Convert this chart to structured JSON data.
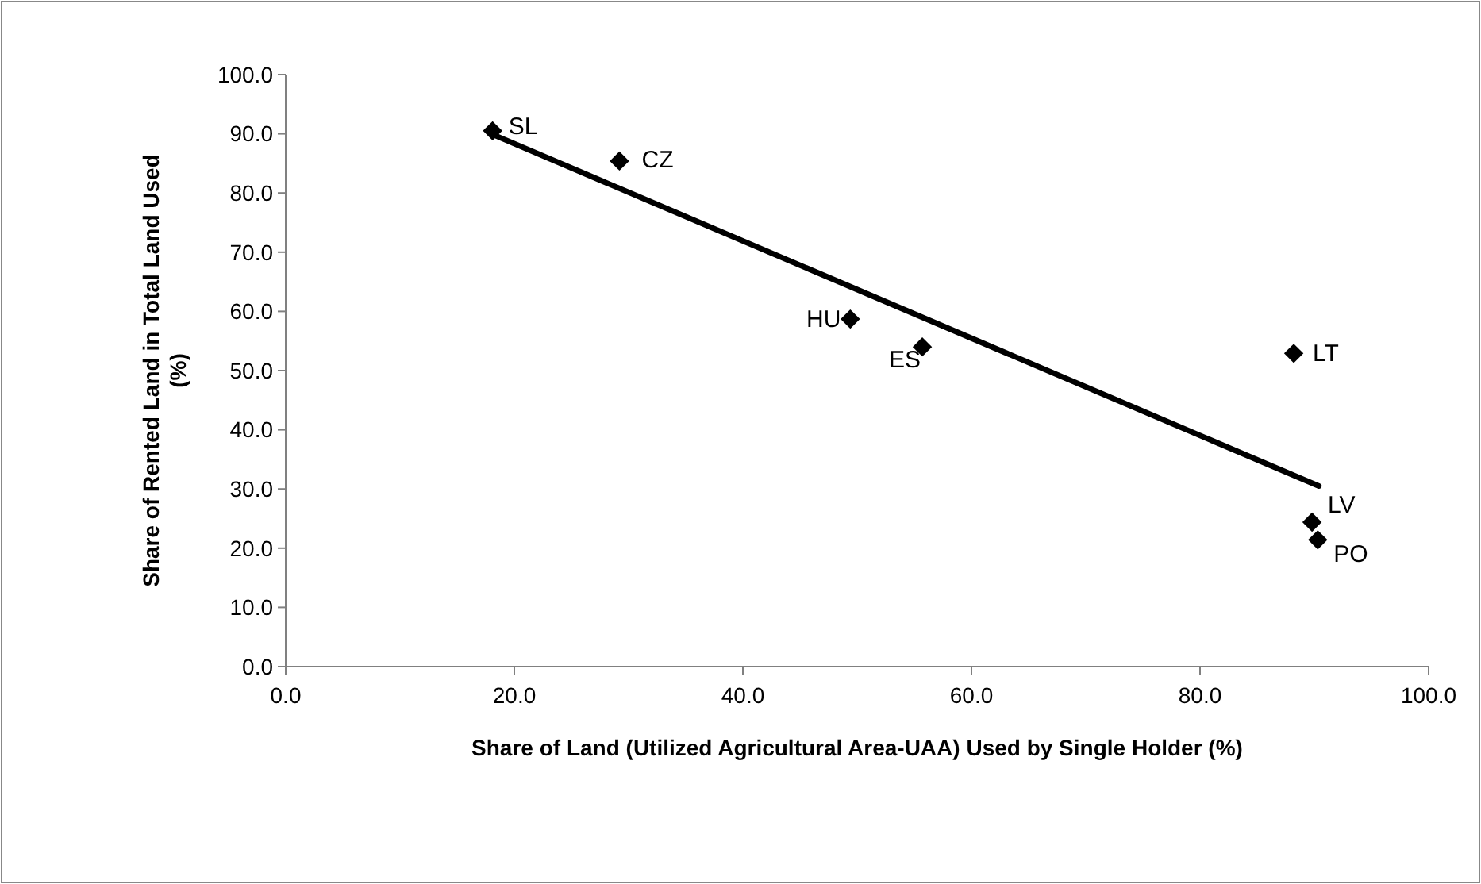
{
  "chart_data": {
    "type": "scatter",
    "xlabel": "Share of Land (Utilized Agricultural Area-UAA) Used by Single Holder (%)",
    "ylabel": "Share of Rented Land in Total Land Used (%)",
    "xlim": [
      0,
      100
    ],
    "ylim": [
      0,
      100
    ],
    "xticks": [
      {
        "value": 0,
        "label": "0.0"
      },
      {
        "value": 20,
        "label": "20.0"
      },
      {
        "value": 40,
        "label": "40.0"
      },
      {
        "value": 60,
        "label": "60.0"
      },
      {
        "value": 80,
        "label": "80.0"
      },
      {
        "value": 100,
        "label": "100.0"
      }
    ],
    "yticks": [
      {
        "value": 0,
        "label": "0.0"
      },
      {
        "value": 10,
        "label": "10.0"
      },
      {
        "value": 20,
        "label": "20.0"
      },
      {
        "value": 30,
        "label": "30.0"
      },
      {
        "value": 40,
        "label": "40.0"
      },
      {
        "value": 50,
        "label": "50.0"
      },
      {
        "value": 60,
        "label": "60.0"
      },
      {
        "value": 70,
        "label": "70.0"
      },
      {
        "value": 80,
        "label": "80.0"
      },
      {
        "value": 90,
        "label": "90.0"
      },
      {
        "value": 100,
        "label": "100.0"
      }
    ],
    "grid": false,
    "series": [
      {
        "marker": "diamond",
        "color": "#000000",
        "x": [
          18.1,
          29.2,
          49.4,
          55.7,
          88.2,
          89.8,
          90.3
        ],
        "values": [
          90.5,
          85.4,
          58.7,
          54.0,
          52.9,
          24.4,
          21.4
        ]
      },
      {
        "type": "line",
        "marker": "none",
        "color": "#000000",
        "x": [
          18.1,
          90.4
        ],
        "values": [
          89.9,
          30.5
        ]
      }
    ],
    "annotations": [
      {
        "text": "SL",
        "x": 18.1,
        "y": 90.5
      },
      {
        "text": "CZ",
        "x": 29.2,
        "y": 85.4
      },
      {
        "text": "HU",
        "x": 49.4,
        "y": 58.7
      },
      {
        "text": "ES",
        "x": 55.7,
        "y": 54.0
      },
      {
        "text": "LT",
        "x": 88.2,
        "y": 52.9
      },
      {
        "text": "LV",
        "x": 89.8,
        "y": 24.4
      },
      {
        "text": "PO",
        "x": 90.3,
        "y": 21.4
      }
    ]
  }
}
